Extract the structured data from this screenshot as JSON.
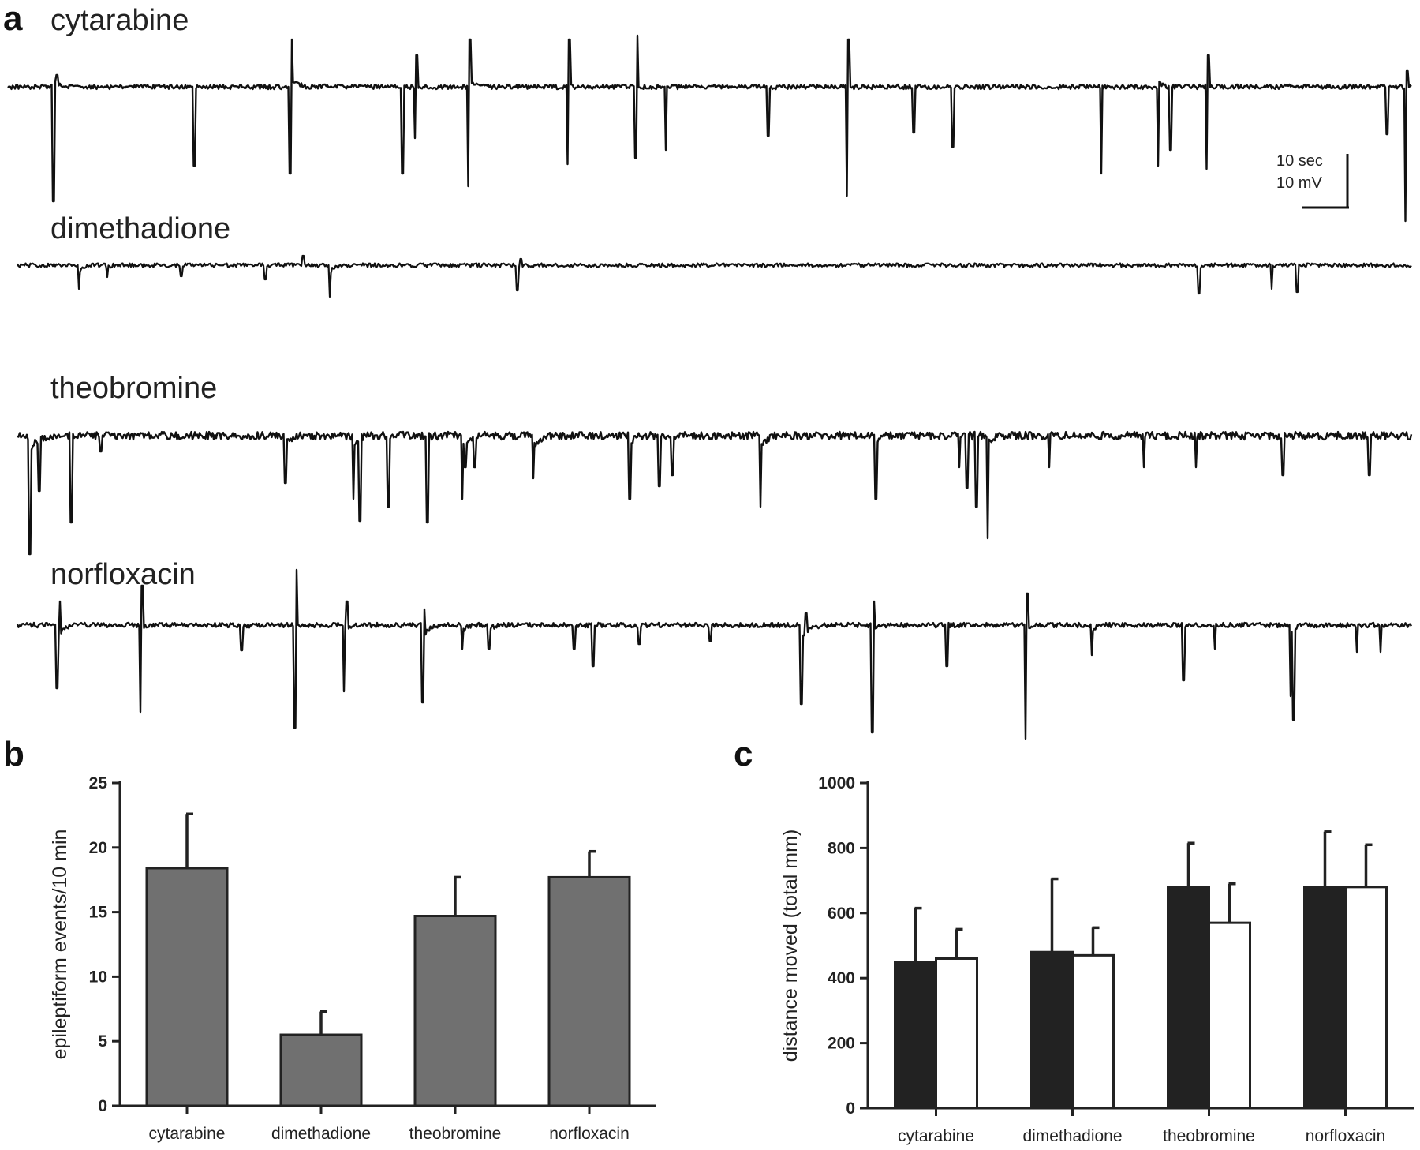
{
  "panels": {
    "a": "a",
    "b": "b",
    "c": "c"
  },
  "traces": [
    {
      "label": "cytarabine"
    },
    {
      "label": "dimethadione"
    },
    {
      "label": "theobromine"
    },
    {
      "label": "norfloxacin"
    }
  ],
  "scale_bar": {
    "time": "10 sec",
    "voltage": "10 mV"
  },
  "chart_data": [
    {
      "type": "bar",
      "panel": "b",
      "title": "",
      "xlabel": "",
      "ylabel": "epileptiform events/10 min",
      "ylim": [
        0,
        25
      ],
      "yticks": [
        0,
        5,
        10,
        15,
        20,
        25
      ],
      "categories": [
        "cytarabine",
        "dimethadione",
        "theobromine",
        "norfloxacin"
      ],
      "values": [
        18.4,
        5.5,
        14.7,
        17.7
      ],
      "errors": [
        4.2,
        1.8,
        3.0,
        2.0
      ],
      "bar_color": "#707070"
    },
    {
      "type": "bar",
      "panel": "c",
      "title": "",
      "xlabel": "",
      "ylabel": "distance moved (total mm)",
      "ylim": [
        0,
        1000
      ],
      "yticks": [
        0,
        200,
        400,
        600,
        800,
        1000
      ],
      "categories": [
        "cytarabine",
        "dimethadione",
        "theobromine",
        "norfloxacin"
      ],
      "series": [
        {
          "values": [
            450,
            480,
            680,
            680
          ],
          "errors": [
            165,
            225,
            135,
            170
          ],
          "fill": "#222222"
        },
        {
          "values": [
            460,
            470,
            570,
            680
          ],
          "errors": [
            90,
            85,
            120,
            130
          ],
          "fill": "#ffffff"
        }
      ]
    }
  ]
}
